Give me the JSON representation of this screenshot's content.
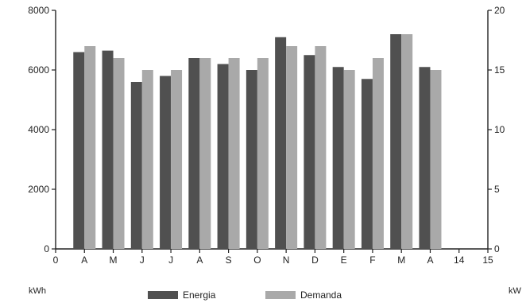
{
  "chart_data": {
    "type": "bar",
    "x_ticks": [
      "0",
      "A",
      "M",
      "J",
      "J",
      "A",
      "S",
      "O",
      "N",
      "D",
      "E",
      "F",
      "M",
      "A",
      "14",
      "15"
    ],
    "categories": [
      "A",
      "M",
      "J",
      "J",
      "A",
      "S",
      "O",
      "N",
      "D",
      "E",
      "F",
      "M",
      "A"
    ],
    "series": [
      {
        "name": "Energia",
        "axis": "left",
        "color": "#505050",
        "values": [
          6600,
          6650,
          5600,
          5800,
          6400,
          6200,
          6000,
          7100,
          6500,
          6100,
          5700,
          7200,
          6100
        ]
      },
      {
        "name": "Demanda",
        "axis": "right",
        "color": "#a9a9a9",
        "values": [
          17,
          16,
          15,
          15,
          16,
          16,
          16,
          17,
          17,
          15,
          16,
          18,
          15
        ]
      }
    ],
    "ylabel": "kWh",
    "ylabel_right": "kW",
    "ylim": [
      0,
      8000
    ],
    "ylim_right": [
      0,
      20
    ],
    "yticks": [
      "0",
      "2000",
      "4000",
      "6000",
      "8000"
    ],
    "yticks_right": [
      "0",
      "5",
      "10",
      "15",
      "20"
    ],
    "legend_position": "bottom",
    "grid": false
  }
}
